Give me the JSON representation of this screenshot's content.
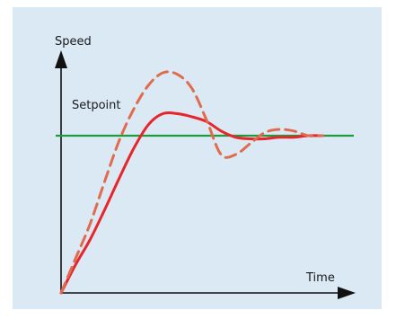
{
  "chart_data": {
    "type": "line",
    "title": "",
    "ylabel": "Speed",
    "xlabel": "Time",
    "annotations": [
      "Setpoint"
    ],
    "setpoint": 1.0,
    "xlim": [
      0,
      10
    ],
    "ylim": [
      0,
      1.6
    ],
    "grid": false,
    "legend": "none",
    "series": [
      {
        "style": "solid",
        "color": "#e8252b",
        "x": [
          0,
          0.5,
          1.0,
          1.5,
          2.0,
          2.5,
          3.0,
          3.5,
          4.0,
          4.5,
          5.0,
          5.5,
          6.0,
          6.5,
          7.0,
          7.5,
          8.0,
          8.5,
          9.0
        ],
        "y": [
          0,
          0.18,
          0.34,
          0.53,
          0.73,
          0.92,
          1.07,
          1.14,
          1.14,
          1.12,
          1.09,
          1.03,
          0.99,
          0.98,
          0.98,
          0.99,
          0.99,
          1.0,
          1.0
        ]
      },
      {
        "style": "dashed",
        "color": "#e06b4d",
        "x": [
          0,
          0.5,
          1.0,
          1.5,
          2.0,
          2.5,
          3.0,
          3.5,
          4.0,
          4.5,
          5.0,
          5.5,
          6.0,
          6.5,
          7.0,
          7.5,
          8.0,
          8.5,
          9.0
        ],
        "y": [
          0,
          0.22,
          0.44,
          0.71,
          0.97,
          1.17,
          1.32,
          1.4,
          1.39,
          1.3,
          1.1,
          0.88,
          0.88,
          0.95,
          1.02,
          1.04,
          1.03,
          1.0,
          1.0
        ]
      }
    ],
    "colors": {
      "background": "#dbe9f5",
      "axes": "#111111",
      "setpoint": "#1e9b3c"
    }
  }
}
